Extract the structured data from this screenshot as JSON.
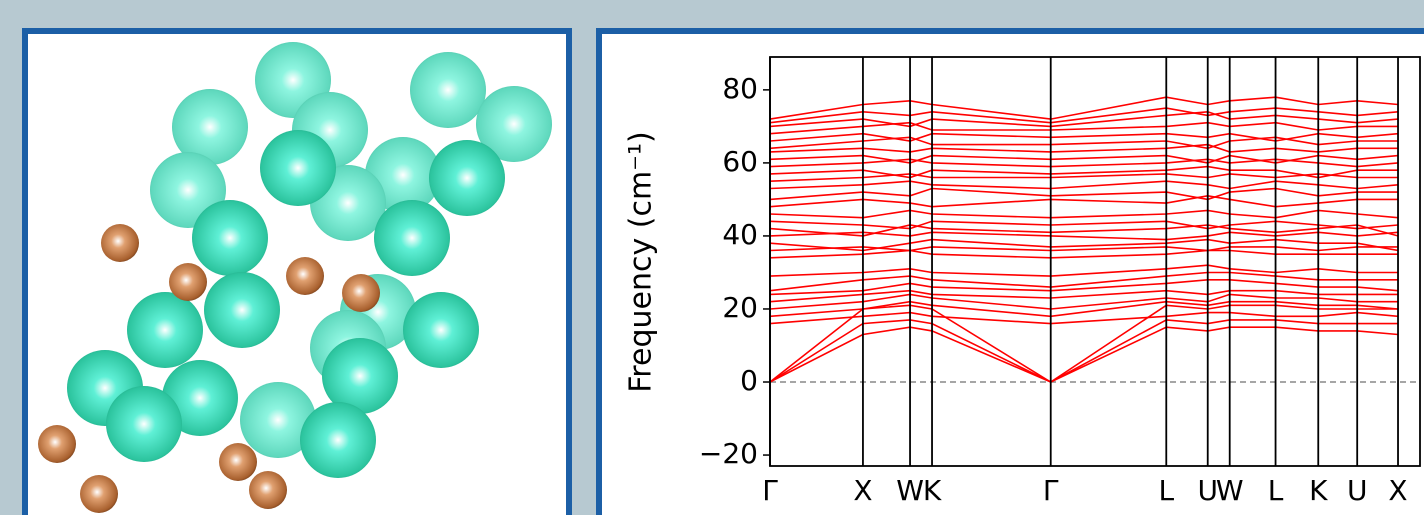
{
  "chart_data": {
    "type": "line",
    "y_label": "Frequency (cm⁻¹)",
    "color": "#ff0000",
    "zero_line": true,
    "x": [
      0,
      0.148,
      0.223,
      0.258,
      0.447,
      0.631,
      0.697,
      0.732,
      0.805,
      0.873,
      0.935,
      1.0
    ],
    "xlim": [
      0,
      1.035
    ],
    "xticks": [
      {
        "value": 0,
        "label": "Γ"
      },
      {
        "value": 0.148,
        "label": "X"
      },
      {
        "value": 0.223,
        "label": "W"
      },
      {
        "value": 0.258,
        "label": "K"
      },
      {
        "value": 0.447,
        "label": "Γ"
      },
      {
        "value": 0.631,
        "label": "L"
      },
      {
        "value": 0.697,
        "label": "U"
      },
      {
        "value": 0.732,
        "label": "W"
      },
      {
        "value": 0.805,
        "label": "L"
      },
      {
        "value": 0.873,
        "label": "K"
      },
      {
        "value": 0.935,
        "label": "U"
      },
      {
        "value": 1.0,
        "label": "X"
      }
    ],
    "ylim": [
      -23,
      89
    ],
    "yticks": [
      {
        "value": -20,
        "label": "−20"
      },
      0,
      20,
      40,
      60,
      80
    ],
    "series": [
      {
        "values": [
          0,
          13,
          15,
          14,
          0,
          15,
          14,
          15,
          15,
          14,
          14,
          13
        ]
      },
      {
        "values": [
          0,
          16,
          17,
          16,
          0,
          17,
          16,
          17,
          17,
          16,
          16,
          16
        ]
      },
      {
        "values": [
          0,
          20,
          21,
          20,
          0,
          21,
          20,
          21,
          21,
          20,
          20,
          20
        ]
      },
      {
        "values": [
          16,
          18,
          19,
          18,
          16,
          18,
          19,
          19,
          18,
          18,
          19,
          18
        ]
      },
      {
        "values": [
          18,
          20,
          22,
          21,
          18,
          22,
          21,
          22,
          22,
          21,
          21,
          20
        ]
      },
      {
        "values": [
          20,
          22,
          24,
          23,
          20,
          23,
          22,
          24,
          23,
          23,
          22,
          22
        ]
      },
      {
        "values": [
          22,
          24,
          25,
          24,
          23,
          25,
          24,
          25,
          25,
          24,
          24,
          24
        ]
      },
      {
        "values": [
          24,
          25,
          27,
          26,
          25,
          27,
          28,
          28,
          27,
          26,
          26,
          25
        ]
      },
      {
        "values": [
          25,
          28,
          29,
          28,
          26,
          29,
          30,
          30,
          29,
          28,
          28,
          28
        ]
      },
      {
        "values": [
          29,
          30,
          31,
          30,
          29,
          31,
          32,
          31,
          30,
          31,
          30,
          30
        ]
      },
      {
        "values": [
          34,
          35,
          36,
          35,
          34,
          35,
          36,
          36,
          35,
          35,
          35,
          35
        ]
      },
      {
        "values": [
          36,
          37,
          36,
          37,
          36,
          37,
          36,
          37,
          37,
          36,
          37,
          37
        ]
      },
      {
        "values": [
          38,
          36,
          38,
          39,
          37,
          38,
          39,
          38,
          39,
          38,
          38,
          36
        ]
      },
      {
        "values": [
          40,
          41,
          40,
          41,
          40,
          39,
          40,
          41,
          40,
          41,
          40,
          41
        ]
      },
      {
        "values": [
          42,
          40,
          43,
          42,
          41,
          42,
          43,
          42,
          41,
          42,
          43,
          40
        ]
      },
      {
        "values": [
          44,
          43,
          42,
          44,
          43,
          44,
          42,
          43,
          44,
          43,
          42,
          43
        ]
      },
      {
        "values": [
          46,
          45,
          47,
          46,
          45,
          46,
          47,
          46,
          45,
          47,
          46,
          45
        ]
      },
      {
        "values": [
          48,
          50,
          49,
          48,
          50,
          49,
          51,
          50,
          48,
          49,
          50,
          50
        ]
      },
      {
        "values": [
          50,
          52,
          51,
          53,
          51,
          52,
          50,
          52,
          53,
          51,
          52,
          52
        ]
      },
      {
        "values": [
          53,
          54,
          55,
          54,
          53,
          55,
          54,
          53,
          55,
          54,
          53,
          54
        ]
      },
      {
        "values": [
          55,
          56,
          57,
          56,
          56,
          57,
          56,
          57,
          56,
          57,
          56,
          56
        ]
      },
      {
        "values": [
          57,
          58,
          56,
          58,
          57,
          58,
          59,
          58,
          58,
          56,
          58,
          58
        ]
      },
      {
        "values": [
          59,
          60,
          61,
          60,
          59,
          60,
          61,
          60,
          61,
          60,
          59,
          60
        ]
      },
      {
        "values": [
          61,
          62,
          60,
          62,
          61,
          62,
          60,
          62,
          60,
          62,
          61,
          62
        ]
      },
      {
        "values": [
          63,
          64,
          63,
          64,
          63,
          64,
          65,
          63,
          64,
          63,
          64,
          64
        ]
      },
      {
        "values": [
          64,
          66,
          67,
          65,
          65,
          66,
          64,
          66,
          67,
          65,
          66,
          66
        ]
      },
      {
        "values": [
          66,
          68,
          66,
          68,
          67,
          68,
          67,
          68,
          66,
          68,
          67,
          68
        ]
      },
      {
        "values": [
          68,
          70,
          71,
          69,
          69,
          70,
          71,
          70,
          71,
          69,
          70,
          70
        ]
      },
      {
        "values": [
          70,
          72,
          70,
          72,
          70,
          73,
          74,
          72,
          73,
          72,
          71,
          72
        ]
      },
      {
        "values": [
          71,
          74,
          73,
          74,
          71,
          75,
          73,
          74,
          75,
          74,
          73,
          74
        ]
      },
      {
        "values": [
          72,
          76,
          77,
          76,
          72,
          78,
          76,
          77,
          78,
          76,
          77,
          76
        ]
      }
    ]
  }
}
